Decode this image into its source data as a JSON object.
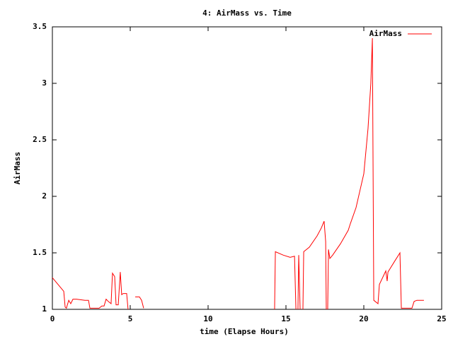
{
  "chart_data": {
    "type": "line",
    "title": "4: AirMass vs. Time",
    "x_label": "time (Elapse Hours)",
    "y_label": "AirMass",
    "xlim": [
      0,
      25
    ],
    "xticks": [
      0,
      5,
      10,
      15,
      20,
      25
    ],
    "ylim": [
      1,
      3.5
    ],
    "yticks": [
      1,
      1.5,
      2,
      2.5,
      3,
      3.5
    ],
    "grid": false,
    "legend": "top-right",
    "x": [
      0,
      0.73,
      0.82,
      0.9,
      1.05,
      1.18,
      1.32,
      1.55,
      2.09,
      2.32,
      2.41,
      3.0,
      3.18,
      3.32,
      3.45,
      3.59,
      3.77,
      3.86,
      4.0,
      4.09,
      4.23,
      4.36,
      4.45,
      4.55,
      4.77,
      4.86,
      5.1,
      5.32,
      5.59,
      5.73,
      5.86,
      10,
      14.27,
      14.32,
      14.82,
      15.27,
      15.55,
      15.64,
      15.7,
      15.77,
      15.82,
      15.91,
      16.0,
      16.09,
      16.14,
      16.5,
      17.0,
      17.27,
      17.45,
      17.55,
      17.59,
      17.64,
      17.68,
      17.73,
      17.82,
      18.0,
      18.5,
      19.0,
      19.14,
      19.5,
      20.0,
      20.27,
      20.45,
      20.55,
      20.64,
      20.91,
      21.0,
      21.41,
      21.5,
      21.55,
      22.0,
      22.32,
      22.41,
      23.09,
      23.23,
      23.41,
      23.86
    ],
    "series": [
      {
        "name": "AirMass",
        "color": "#ff0000",
        "values": [
          1.28,
          1.16,
          1.02,
          1.01,
          1.08,
          1.05,
          1.09,
          1.09,
          1.08,
          1.08,
          1.01,
          1.01,
          1.03,
          1.03,
          1.09,
          1.07,
          1.05,
          1.32,
          1.29,
          1.04,
          1.04,
          1.33,
          1.13,
          1.14,
          1.14,
          1.0,
          null,
          1.11,
          1.11,
          1.08,
          1.01,
          null,
          1.0,
          1.51,
          1.48,
          1.46,
          1.47,
          1.0,
          null,
          1.0,
          1.48,
          1.0,
          null,
          1.0,
          1.51,
          1.55,
          1.65,
          1.72,
          1.78,
          1.6,
          1.0,
          null,
          1.0,
          1.53,
          1.45,
          1.48,
          1.58,
          1.7,
          1.76,
          1.9,
          2.2,
          2.6,
          3.0,
          3.4,
          1.08,
          1.05,
          1.22,
          1.34,
          1.25,
          1.33,
          1.43,
          1.5,
          1.01,
          1.01,
          1.07,
          1.08,
          1.08
        ]
      }
    ]
  }
}
